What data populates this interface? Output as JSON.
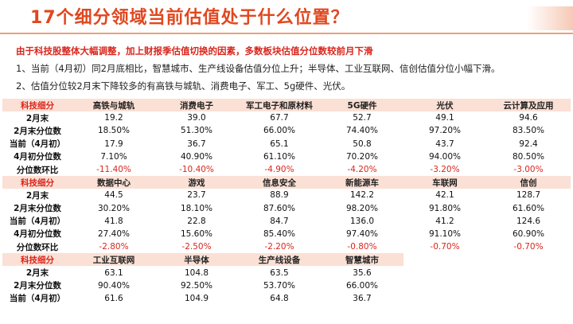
{
  "title": "17个细分领域当前估值处于什么位置？",
  "subtitle": "由于科技股整体大幅调整，加上财报季估值切换的因素，多数板块估值分位数较前月下滑",
  "points": [
    "1、当前（4月初）同2月底相比，智慧城市、生产线设备估值分位上升；半导体、工业互联网、信创估值分位小幅下滑。",
    "2、估值分位较2月末下降较多的有高铁与城轨、消费电子、军工、5g硬件、光伏。"
  ],
  "colors": {
    "title": "#e1471f",
    "negative": "#d9261c",
    "header_bg": "#fbe0d5"
  },
  "blocks": [
    {
      "header": [
        "科技细分",
        "高铁与城轨",
        "消费电子",
        "军工电子和原材料",
        "5G硬件",
        "光伏",
        "云计算及应用"
      ],
      "rows": [
        {
          "label": "2月末",
          "values": [
            "19.2",
            "39.0",
            "67.7",
            "52.7",
            "49.1",
            "94.6"
          ]
        },
        {
          "label": "2月末分位数",
          "values": [
            "18.50%",
            "51.30%",
            "66.00%",
            "74.40%",
            "97.20%",
            "83.50%"
          ]
        },
        {
          "label": "当前（4月初）",
          "values": [
            "17.9",
            "36.7",
            "65.1",
            "50.8",
            "43.7",
            "92.4"
          ]
        },
        {
          "label": "4月初分位数",
          "values": [
            "7.10%",
            "40.90%",
            "61.10%",
            "70.20%",
            "94.00%",
            "80.50%"
          ]
        },
        {
          "label": "分位数环比",
          "values": [
            "-11.40%",
            "-10.40%",
            "-4.90%",
            "-4.20%",
            "-3.20%",
            "-3.00%"
          ]
        }
      ]
    },
    {
      "header": [
        "科技细分",
        "数据中心",
        "游戏",
        "信息安全",
        "新能源车",
        "车联网",
        "信创"
      ],
      "rows": [
        {
          "label": "2月末",
          "values": [
            "44.5",
            "23.7",
            "88.9",
            "142.2",
            "42.1",
            "128.7"
          ]
        },
        {
          "label": "2月末分位数",
          "values": [
            "30.20%",
            "18.10%",
            "87.60%",
            "98.20%",
            "91.80%",
            "61.60%"
          ]
        },
        {
          "label": "当前（4月初）",
          "values": [
            "41.8",
            "22.8",
            "84.7",
            "136.0",
            "41.2",
            "124.6"
          ]
        },
        {
          "label": "4月初分位数",
          "values": [
            "27.40%",
            "15.60%",
            "85.40%",
            "97.40%",
            "91.10%",
            "60.90%"
          ]
        },
        {
          "label": "分位数环比",
          "values": [
            "-2.80%",
            "-2.50%",
            "-2.20%",
            "-0.80%",
            "-0.70%",
            "-0.70%"
          ]
        }
      ]
    },
    {
      "header": [
        "科技细分",
        "工业互联网",
        "半导体",
        "生产线设备",
        "智慧城市"
      ],
      "rows": [
        {
          "label": "2月末",
          "values": [
            "63.1",
            "104.8",
            "63.5",
            "35.6"
          ]
        },
        {
          "label": "2月末分位数",
          "values": [
            "90.40%",
            "92.50%",
            "53.70%",
            "66.00%"
          ]
        },
        {
          "label": "当前（4月初）",
          "values": [
            "61.6",
            "104.9",
            "64.8",
            "36.7"
          ]
        }
      ]
    }
  ]
}
